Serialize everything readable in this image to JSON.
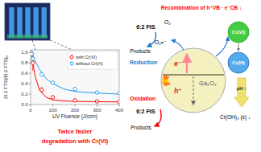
{
  "chart_data": {
    "type": "scatter",
    "xlabel": "UV Fluence (J/cm²)",
    "ylabel": "[6:2 FTS]/[6:2 FTS]₀",
    "xlim": [
      0,
      400
    ],
    "ylim": [
      0.0,
      1.05
    ],
    "xticks": [
      0,
      100,
      200,
      300,
      400
    ],
    "yticks": [
      {
        "value": 0.0,
        "label": "0.0"
      },
      0.2,
      0.4,
      0.6,
      0.8,
      {
        "value": 1.0,
        "label": "1.0"
      }
    ],
    "grid": false,
    "legend": "upper right",
    "series": [
      {
        "type": "line",
        "color": "red",
        "line_style": "solid",
        "x": [
          0,
          3,
          6,
          10,
          20,
          40,
          70,
          100,
          150,
          200,
          300,
          400
        ],
        "values": [
          1.0,
          0.96,
          0.9,
          0.8,
          0.55,
          0.28,
          0.14,
          0.09,
          0.07,
          0.06,
          0.055,
          0.05
        ]
      },
      {
        "type": "line",
        "color": "#2299ee",
        "line_style": "solid",
        "x": [
          0,
          3,
          6,
          10,
          20,
          40,
          70,
          100,
          150,
          200,
          300,
          400
        ],
        "values": [
          1.0,
          0.99,
          0.97,
          0.94,
          0.84,
          0.68,
          0.5,
          0.4,
          0.3,
          0.25,
          0.22,
          0.2
        ]
      },
      {
        "name": "with Cr(VI)",
        "type": "scatter",
        "color": "red",
        "marker": "circle",
        "x": [
          0,
          5,
          10,
          50,
          100,
          200,
          300,
          400
        ],
        "values": [
          1.0,
          0.97,
          0.8,
          0.28,
          0.14,
          0.08,
          0.06,
          0.05
        ],
        "errors": [
          0.03,
          0.03,
          0.15,
          0.06,
          0.04,
          0.01,
          0.01,
          0.01
        ]
      },
      {
        "name": "without Cr(VI)",
        "type": "scatter",
        "color": "#2299ee",
        "marker": "circle",
        "x": [
          0,
          5,
          10,
          50,
          100,
          200,
          300,
          400
        ],
        "values": [
          1.0,
          0.97,
          0.88,
          0.58,
          0.42,
          0.3,
          0.23,
          0.22
        ],
        "errors": [
          0.02,
          0.02,
          0.04,
          0.03,
          0.03,
          0.02,
          0.02,
          0.02
        ]
      }
    ],
    "annotations": [
      "Twice faster",
      "degradation with Cr(VI)",
      "Recombination of h⁺VB · e⁻CB ↓",
      "e⁻",
      "h⁺",
      "Ga₂O₃",
      "hν",
      "6:2 FtS",
      "Products",
      "O₂",
      "O₂•⁻",
      "Reduction",
      "Oxidation",
      "6:2 FtS",
      "Products",
      "Cr(VI)",
      "Cr(III)",
      "pH ↑",
      "Cr(OH)₃ (s) ↓"
    ]
  }
}
